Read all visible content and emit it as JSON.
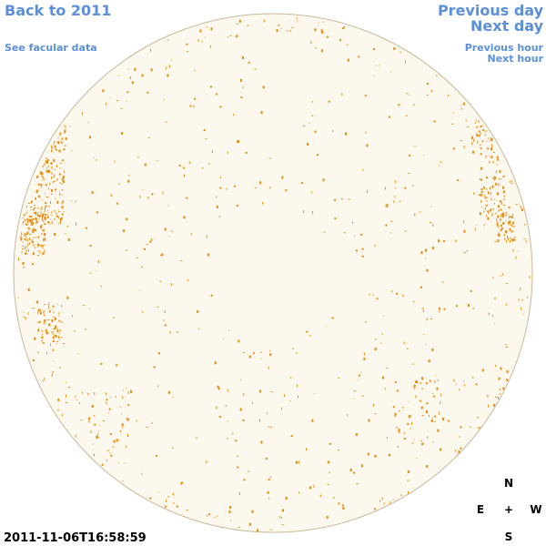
{
  "navigation": {
    "back": "Back to 2011",
    "facular_link": "See facular data",
    "previous_day": "Previous day",
    "next_day": "Next day",
    "previous_hour": "Previous hour",
    "next_hour": "Next hour"
  },
  "timestamp": "2011-11-06T16:58:59",
  "compass": {
    "north": "N",
    "east": "E",
    "center": "+",
    "west": "W",
    "south": "S"
  }
}
